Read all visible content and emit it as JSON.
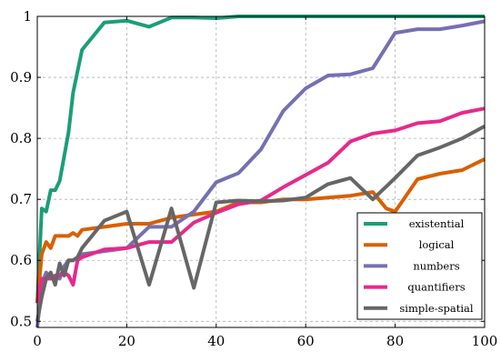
{
  "chart_data": {
    "type": "line",
    "title": "",
    "xlabel": "",
    "ylabel": "",
    "xlim": [
      0,
      100
    ],
    "ylim": [
      0.49,
      1.0
    ],
    "x_ticks": [
      0,
      20,
      40,
      60,
      80,
      100
    ],
    "y_ticks": [
      0.5,
      0.6,
      0.7,
      0.8,
      0.9,
      1.0
    ],
    "x_tick_labels": [
      "0",
      "20",
      "40",
      "60",
      "80",
      "100"
    ],
    "y_tick_labels": [
      "0.5",
      "0.6",
      "0.7",
      "0.8",
      "0.9",
      "1"
    ],
    "grid": true,
    "legend_position": "bottom-right",
    "series": [
      {
        "name": "existential",
        "color": "#1b9e77",
        "points": [
          [
            0,
            0.53
          ],
          [
            1,
            0.685
          ],
          [
            2,
            0.68
          ],
          [
            3,
            0.715
          ],
          [
            4,
            0.715
          ],
          [
            5,
            0.73
          ],
          [
            7,
            0.81
          ],
          [
            8,
            0.875
          ],
          [
            10,
            0.945
          ],
          [
            15,
            0.99
          ],
          [
            20,
            0.993
          ],
          [
            25,
            0.983
          ],
          [
            30,
            0.998
          ],
          [
            35,
            0.998
          ],
          [
            40,
            0.997
          ],
          [
            45,
            1.0
          ],
          [
            50,
            1.0
          ],
          [
            55,
            1.0
          ],
          [
            60,
            1.0
          ],
          [
            65,
            1.0
          ],
          [
            70,
            1.0
          ],
          [
            75,
            1.0
          ],
          [
            80,
            1.0
          ],
          [
            85,
            1.0
          ],
          [
            90,
            1.0
          ],
          [
            95,
            1.0
          ],
          [
            100,
            1.0
          ]
        ]
      },
      {
        "name": "logical",
        "color": "#d95f02",
        "points": [
          [
            0,
            0.53
          ],
          [
            1,
            0.61
          ],
          [
            2,
            0.63
          ],
          [
            3,
            0.62
          ],
          [
            4,
            0.64
          ],
          [
            5,
            0.64
          ],
          [
            6,
            0.64
          ],
          [
            7,
            0.64
          ],
          [
            8,
            0.645
          ],
          [
            9,
            0.64
          ],
          [
            10,
            0.65
          ],
          [
            15,
            0.655
          ],
          [
            20,
            0.66
          ],
          [
            25,
            0.66
          ],
          [
            30,
            0.67
          ],
          [
            35,
            0.675
          ],
          [
            40,
            0.68
          ],
          [
            45,
            0.695
          ],
          [
            50,
            0.695
          ],
          [
            55,
            0.7
          ],
          [
            60,
            0.7
          ],
          [
            65,
            0.703
          ],
          [
            70,
            0.706
          ],
          [
            75,
            0.712
          ],
          [
            78,
            0.685
          ],
          [
            80,
            0.68
          ],
          [
            85,
            0.733
          ],
          [
            90,
            0.742
          ],
          [
            95,
            0.748
          ],
          [
            100,
            0.766
          ]
        ]
      },
      {
        "name": "numbers",
        "color": "#7570b3",
        "points": [
          [
            0,
            0.49
          ],
          [
            1,
            0.56
          ],
          [
            2,
            0.58
          ],
          [
            3,
            0.57
          ],
          [
            4,
            0.575
          ],
          [
            5,
            0.57
          ],
          [
            6,
            0.59
          ],
          [
            7,
            0.6
          ],
          [
            8,
            0.6
          ],
          [
            10,
            0.61
          ],
          [
            15,
            0.615
          ],
          [
            20,
            0.62
          ],
          [
            25,
            0.655
          ],
          [
            30,
            0.655
          ],
          [
            35,
            0.68
          ],
          [
            40,
            0.728
          ],
          [
            45,
            0.743
          ],
          [
            50,
            0.782
          ],
          [
            55,
            0.845
          ],
          [
            60,
            0.882
          ],
          [
            65,
            0.903
          ],
          [
            70,
            0.905
          ],
          [
            75,
            0.915
          ],
          [
            80,
            0.973
          ],
          [
            85,
            0.979
          ],
          [
            90,
            0.979
          ],
          [
            95,
            0.985
          ],
          [
            100,
            0.992
          ]
        ]
      },
      {
        "name": "quantifiers",
        "color": "#e7298a",
        "points": [
          [
            0,
            0.53
          ],
          [
            1,
            0.57
          ],
          [
            2,
            0.57
          ],
          [
            3,
            0.57
          ],
          [
            4,
            0.575
          ],
          [
            5,
            0.575
          ],
          [
            6,
            0.58
          ],
          [
            7,
            0.575
          ],
          [
            8,
            0.56
          ],
          [
            9,
            0.6
          ],
          [
            10,
            0.605
          ],
          [
            15,
            0.618
          ],
          [
            20,
            0.62
          ],
          [
            25,
            0.63
          ],
          [
            30,
            0.63
          ],
          [
            35,
            0.662
          ],
          [
            40,
            0.678
          ],
          [
            45,
            0.692
          ],
          [
            50,
            0.698
          ],
          [
            55,
            0.72
          ],
          [
            60,
            0.74
          ],
          [
            65,
            0.76
          ],
          [
            70,
            0.795
          ],
          [
            75,
            0.808
          ],
          [
            80,
            0.813
          ],
          [
            85,
            0.825
          ],
          [
            90,
            0.828
          ],
          [
            95,
            0.842
          ],
          [
            100,
            0.849
          ]
        ]
      },
      {
        "name": "simple-spatial",
        "color": "#666666",
        "points": [
          [
            0,
            0.5
          ],
          [
            1,
            0.54
          ],
          [
            2,
            0.57
          ],
          [
            3,
            0.58
          ],
          [
            4,
            0.56
          ],
          [
            5,
            0.595
          ],
          [
            6,
            0.575
          ],
          [
            7,
            0.6
          ],
          [
            8,
            0.6
          ],
          [
            9,
            0.605
          ],
          [
            10,
            0.62
          ],
          [
            15,
            0.665
          ],
          [
            20,
            0.68
          ],
          [
            25,
            0.56
          ],
          [
            30,
            0.685
          ],
          [
            35,
            0.555
          ],
          [
            40,
            0.695
          ],
          [
            45,
            0.698
          ],
          [
            50,
            0.697
          ],
          [
            55,
            0.698
          ],
          [
            60,
            0.703
          ],
          [
            65,
            0.725
          ],
          [
            70,
            0.735
          ],
          [
            75,
            0.7
          ],
          [
            80,
            0.735
          ],
          [
            85,
            0.772
          ],
          [
            90,
            0.785
          ],
          [
            95,
            0.8
          ],
          [
            100,
            0.82
          ]
        ]
      }
    ]
  }
}
